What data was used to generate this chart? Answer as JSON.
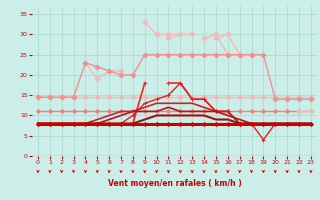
{
  "xlabel": "Vent moyen/en rafales ( km/h )",
  "x": [
    0,
    1,
    2,
    3,
    4,
    5,
    6,
    7,
    8,
    9,
    10,
    11,
    12,
    13,
    14,
    15,
    16,
    17,
    18,
    19,
    20,
    21,
    22,
    23
  ],
  "lines": [
    {
      "y": [
        14.5,
        14.5,
        14.5,
        14.5,
        14.5,
        14.5,
        14.5,
        14.5,
        14.5,
        14.5,
        14.5,
        14.5,
        14.5,
        14.5,
        14.5,
        14.5,
        14.5,
        14.5,
        14.5,
        14.5,
        14.5,
        14.5,
        14.5,
        14.5
      ],
      "color": "#f5b8b8",
      "marker": "D",
      "ms": 2.5,
      "lw": 1.0
    },
    {
      "y": [
        null,
        null,
        null,
        null,
        23,
        19,
        21,
        21,
        null,
        33,
        30,
        30,
        30,
        null,
        29,
        30,
        25,
        25,
        null,
        null,
        null,
        null,
        null,
        null
      ],
      "color": "#f5b8b8",
      "marker": "D",
      "ms": 2.5,
      "lw": 1.0
    },
    {
      "y": [
        null,
        null,
        null,
        null,
        null,
        null,
        null,
        null,
        null,
        null,
        null,
        29,
        30,
        30,
        null,
        29,
        30,
        25,
        25,
        null,
        null,
        14,
        null,
        null
      ],
      "color": "#f5b8b8",
      "marker": "D",
      "ms": 2.5,
      "lw": 1.0
    },
    {
      "y": [
        14.5,
        14.5,
        14.5,
        14.5,
        23,
        22,
        21,
        20,
        20,
        25,
        25,
        25,
        25,
        25,
        25,
        25,
        25,
        25,
        25,
        25,
        14,
        14,
        14,
        14
      ],
      "color": "#f09090",
      "marker": "D",
      "ms": 2.5,
      "lw": 1.0
    },
    {
      "y": [
        11,
        11,
        11,
        11,
        11,
        11,
        11,
        11,
        11,
        11,
        11,
        11,
        11,
        11,
        11,
        11,
        11,
        11,
        11,
        11,
        11,
        11,
        11,
        11
      ],
      "color": "#f08080",
      "marker": "P",
      "ms": 2.5,
      "lw": 1.0
    },
    {
      "y": [
        8,
        8,
        8,
        8,
        8,
        8,
        8,
        8,
        8,
        18,
        null,
        18,
        18,
        14,
        14,
        11,
        11,
        8,
        8,
        null,
        null,
        null,
        null,
        null
      ],
      "color": "#ff2020",
      "marker": "+",
      "ms": 3.5,
      "lw": 1.2
    },
    {
      "y": [
        8,
        8,
        8,
        8,
        8,
        8,
        8,
        8,
        10,
        13,
        14,
        15,
        18,
        14,
        14,
        11,
        11,
        8,
        8,
        4,
        8,
        8,
        8,
        8
      ],
      "color": "#dd2222",
      "marker": "+",
      "ms": 2.5,
      "lw": 1.0
    },
    {
      "y": [
        8,
        8,
        8,
        8,
        8,
        9,
        10,
        11,
        11,
        12,
        13,
        13,
        13,
        13,
        12,
        11,
        11,
        8,
        8,
        8,
        8,
        8,
        8,
        8
      ],
      "color": "#cc2222",
      "marker": "None",
      "ms": 2.5,
      "lw": 1.2
    },
    {
      "y": [
        8,
        8,
        8,
        8,
        8,
        8,
        9,
        10,
        11,
        11,
        11,
        12,
        11,
        11,
        11,
        11,
        10,
        9,
        8,
        8,
        8,
        8,
        8,
        8
      ],
      "color": "#bb1111",
      "marker": "None",
      "ms": 2.5,
      "lw": 1.2
    },
    {
      "y": [
        8,
        8,
        8,
        8,
        8,
        8,
        8,
        8,
        8,
        9,
        10,
        10,
        10,
        10,
        10,
        9,
        9,
        8,
        8,
        8,
        8,
        8,
        8,
        8
      ],
      "color": "#991111",
      "marker": "None",
      "ms": 2.0,
      "lw": 1.5
    },
    {
      "y": [
        8,
        8,
        8,
        8,
        8,
        8,
        8,
        8,
        8,
        8,
        8,
        8,
        8,
        8,
        8,
        8,
        8,
        8,
        8,
        8,
        8,
        8,
        8,
        8
      ],
      "color": "#880000",
      "marker": "None",
      "ms": 2.0,
      "lw": 2.0
    },
    {
      "y": [
        8,
        8,
        8,
        8,
        8,
        8,
        8,
        8,
        8,
        8,
        8,
        8,
        8,
        8,
        8,
        8,
        8,
        8,
        8,
        8,
        8,
        8,
        8,
        8
      ],
      "color": "#cc0000",
      "marker": "D",
      "ms": 2.0,
      "lw": 1.5
    },
    {
      "y": [
        null,
        null,
        null,
        null,
        null,
        null,
        null,
        null,
        null,
        null,
        null,
        null,
        null,
        null,
        null,
        null,
        null,
        null,
        null,
        null,
        null,
        null,
        11,
        11
      ],
      "color": "#f5b8b8",
      "marker": "D",
      "ms": 2.5,
      "lw": 1.0
    }
  ],
  "wind_arrows": [
    0,
    1,
    2,
    3,
    4,
    5,
    6,
    7,
    8,
    9,
    10,
    11,
    12,
    13,
    14,
    15,
    16,
    17,
    18,
    19,
    20,
    21,
    22,
    23
  ],
  "bg_color": "#cceee8",
  "grid_color": "#aaddcc",
  "text_color": "#cc0000",
  "ylim": [
    0,
    37
  ],
  "xlim": [
    -0.5,
    23.5
  ],
  "yticks": [
    0,
    5,
    10,
    15,
    20,
    25,
    30,
    35
  ],
  "xticks": [
    0,
    1,
    2,
    3,
    4,
    5,
    6,
    7,
    8,
    9,
    10,
    11,
    12,
    13,
    14,
    15,
    16,
    17,
    18,
    19,
    20,
    21,
    22,
    23
  ]
}
